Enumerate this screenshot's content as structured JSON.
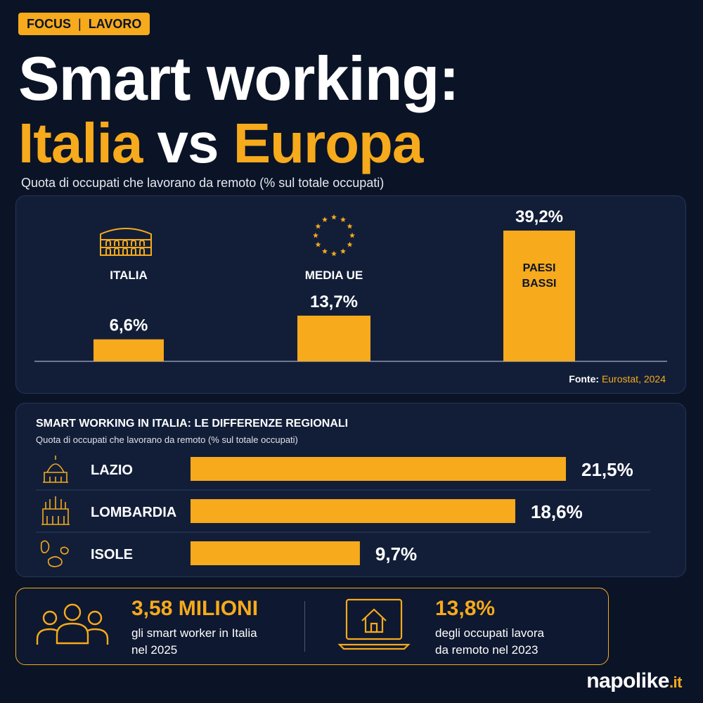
{
  "tag": {
    "left": "FOCUS",
    "separator": "|",
    "right": "LAVORO"
  },
  "title": {
    "line1": "Smart working:",
    "line2_a": "Italia",
    "line2_b": "vs",
    "line2_c": "Europa"
  },
  "subtitle": "Quota di occupati che lavorano da remoto (% sul totale occupati)",
  "chart_data": [
    {
      "type": "bar",
      "categories": [
        "ITALIA",
        "MEDIA UE",
        "PAESI BASSI"
      ],
      "values": [
        6.6,
        13.7,
        39.2
      ],
      "value_labels": [
        "6,6%",
        "13,7%",
        "39,2%"
      ],
      "category_line2": [
        "",
        "",
        "BASSI"
      ],
      "category_line1": [
        "ITALIA",
        "MEDIA UE",
        "PAESI"
      ],
      "icons": [
        "colosseum-icon",
        "eu-stars-icon",
        ""
      ],
      "ylim": [
        0,
        39.2
      ],
      "source_label": "Fonte:",
      "source_value": "Eurostat, 2024",
      "color": "#f6aa1c"
    },
    {
      "type": "bar",
      "orientation": "horizontal",
      "title": "SMART WORKING IN ITALIA: LE DIFFERENZE REGIONALI",
      "subtitle": "Quota di occupati che lavorano da remoto (% sul totale occupati)",
      "categories": [
        "LAZIO",
        "LOMBARDIA",
        "ISOLE"
      ],
      "values": [
        21.5,
        18.6,
        9.7
      ],
      "value_labels": [
        "21,5%",
        "18,6%",
        "9,7%"
      ],
      "icons": [
        "dome-icon",
        "cathedral-icon",
        "islands-icon"
      ],
      "xlim": [
        0,
        21.5
      ],
      "color": "#f6aa1c"
    }
  ],
  "stats": [
    {
      "value": "3,58 MILIONI",
      "line1": "gli smart worker in Italia",
      "line2": "nel 2025",
      "icon": "people-icon"
    },
    {
      "value": "13,8%",
      "line1": "degli occupati lavora",
      "line2": "da remoto nel 2023",
      "icon": "laptop-home-icon"
    }
  ],
  "brand": {
    "name": "napolike",
    "suffix": ".it"
  },
  "colors": {
    "accent": "#f6aa1c",
    "background": "#0b1426",
    "panel": "#121e38"
  }
}
